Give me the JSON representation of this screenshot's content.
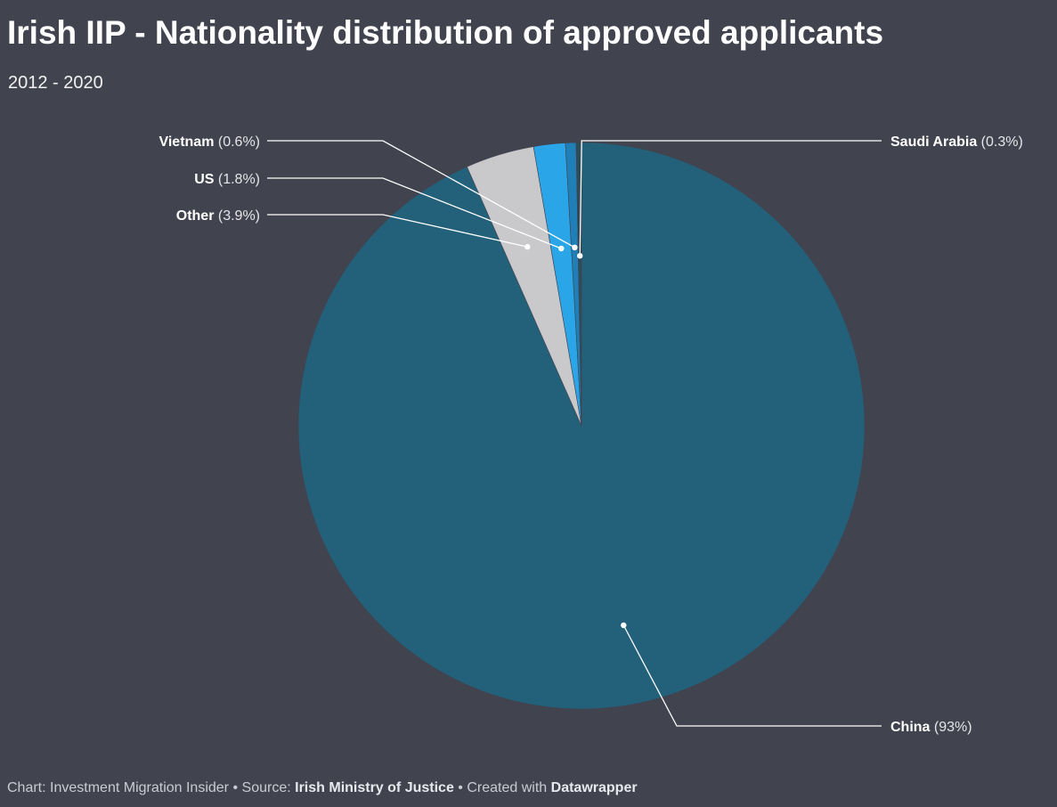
{
  "title": "Irish IIP - Nationality distribution of approved applicants",
  "subtitle": "2012 - 2020",
  "footer": {
    "chart_prefix": "Chart:",
    "chart_author": "Investment Migration Insider",
    "sep1": "•",
    "source_prefix": "Source:",
    "source": "Irish Ministry of Justice",
    "sep2": "•",
    "created_prefix": "Created with",
    "tool": "Datawrapper"
  },
  "colors": {
    "background": "#41434f",
    "China": "#23607a",
    "Other": "#c9c9cc",
    "US": "#2aa6e8",
    "Vietnam": "#1f7fb6",
    "Saudi Arabia": "#2f4c5b",
    "leader": "#ffffff"
  },
  "chart_data": {
    "type": "pie",
    "title": "Irish IIP - Nationality distribution of approved applicants",
    "subtitle": "2012 - 2020",
    "slices": [
      {
        "label": "China",
        "value": 93,
        "value_label": "(93%)"
      },
      {
        "label": "Other",
        "value": 3.9,
        "value_label": "(3.9%)"
      },
      {
        "label": "US",
        "value": 1.8,
        "value_label": "(1.8%)"
      },
      {
        "label": "Vietnam",
        "value": 0.6,
        "value_label": "(0.6%)"
      },
      {
        "label": "Saudi Arabia",
        "value": 0.3,
        "value_label": "(0.3%)"
      }
    ]
  }
}
